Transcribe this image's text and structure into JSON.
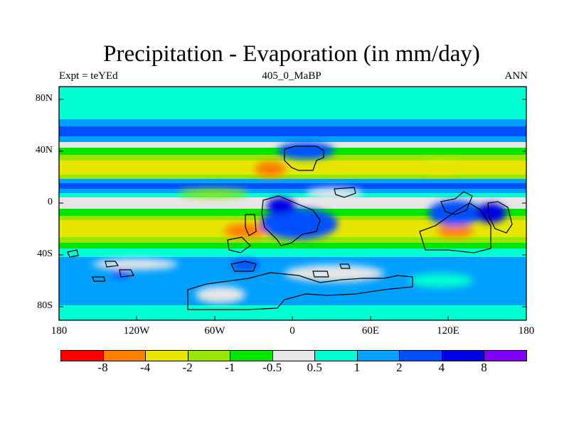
{
  "title": "Precipitation - Evaporation (in mm/day)",
  "subtitle_left": "Expt = teYEd",
  "subtitle_center": "405_0_MaBP",
  "subtitle_right": "ANN",
  "y_axis": {
    "labels": [
      "80N",
      "40N",
      "0",
      "40S",
      "80S"
    ]
  },
  "x_axis": {
    "labels": [
      "180",
      "120W",
      "60W",
      "0",
      "60E",
      "120E",
      "180"
    ]
  },
  "legend": {
    "colors": [
      "#ff0000",
      "#ff7f00",
      "#e6e600",
      "#96e600",
      "#00e600",
      "#e6e6e6",
      "#00ffd2",
      "#00a0ff",
      "#0050ff",
      "#0000e6",
      "#8000ff"
    ],
    "labels": [
      "-8",
      "-4",
      "-2",
      "-1",
      "-0.5",
      "0.5",
      "1",
      "2",
      "4",
      "8"
    ]
  }
}
